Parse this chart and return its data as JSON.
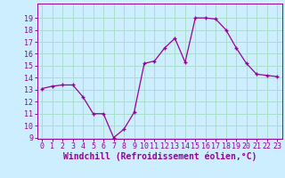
{
  "x": [
    0,
    1,
    2,
    3,
    4,
    5,
    6,
    7,
    8,
    9,
    10,
    11,
    12,
    13,
    14,
    15,
    16,
    17,
    18,
    19,
    20,
    21,
    22,
    23
  ],
  "y": [
    13.1,
    13.3,
    13.4,
    13.4,
    12.4,
    11.0,
    11.0,
    9.0,
    9.7,
    11.1,
    15.2,
    15.4,
    16.5,
    17.3,
    15.3,
    19.0,
    19.0,
    18.9,
    18.0,
    16.5,
    15.2,
    14.3,
    14.2,
    14.1
  ],
  "line_color": "#990099",
  "marker": "+",
  "bg_color": "#cceeff",
  "grid_color": "#aaddcc",
  "xlabel": "Windchill (Refroidissement éolien,°C)",
  "ylim": [
    9,
    20
  ],
  "xlim": [
    -0.5,
    23.5
  ],
  "yticks": [
    9,
    10,
    11,
    12,
    13,
    14,
    15,
    16,
    17,
    18,
    19
  ],
  "xticks": [
    0,
    1,
    2,
    3,
    4,
    5,
    6,
    7,
    8,
    9,
    10,
    11,
    12,
    13,
    14,
    15,
    16,
    17,
    18,
    19,
    20,
    21,
    22,
    23
  ],
  "xlabel_fontsize": 7,
  "tick_fontsize": 6,
  "title_fontsize": 7
}
